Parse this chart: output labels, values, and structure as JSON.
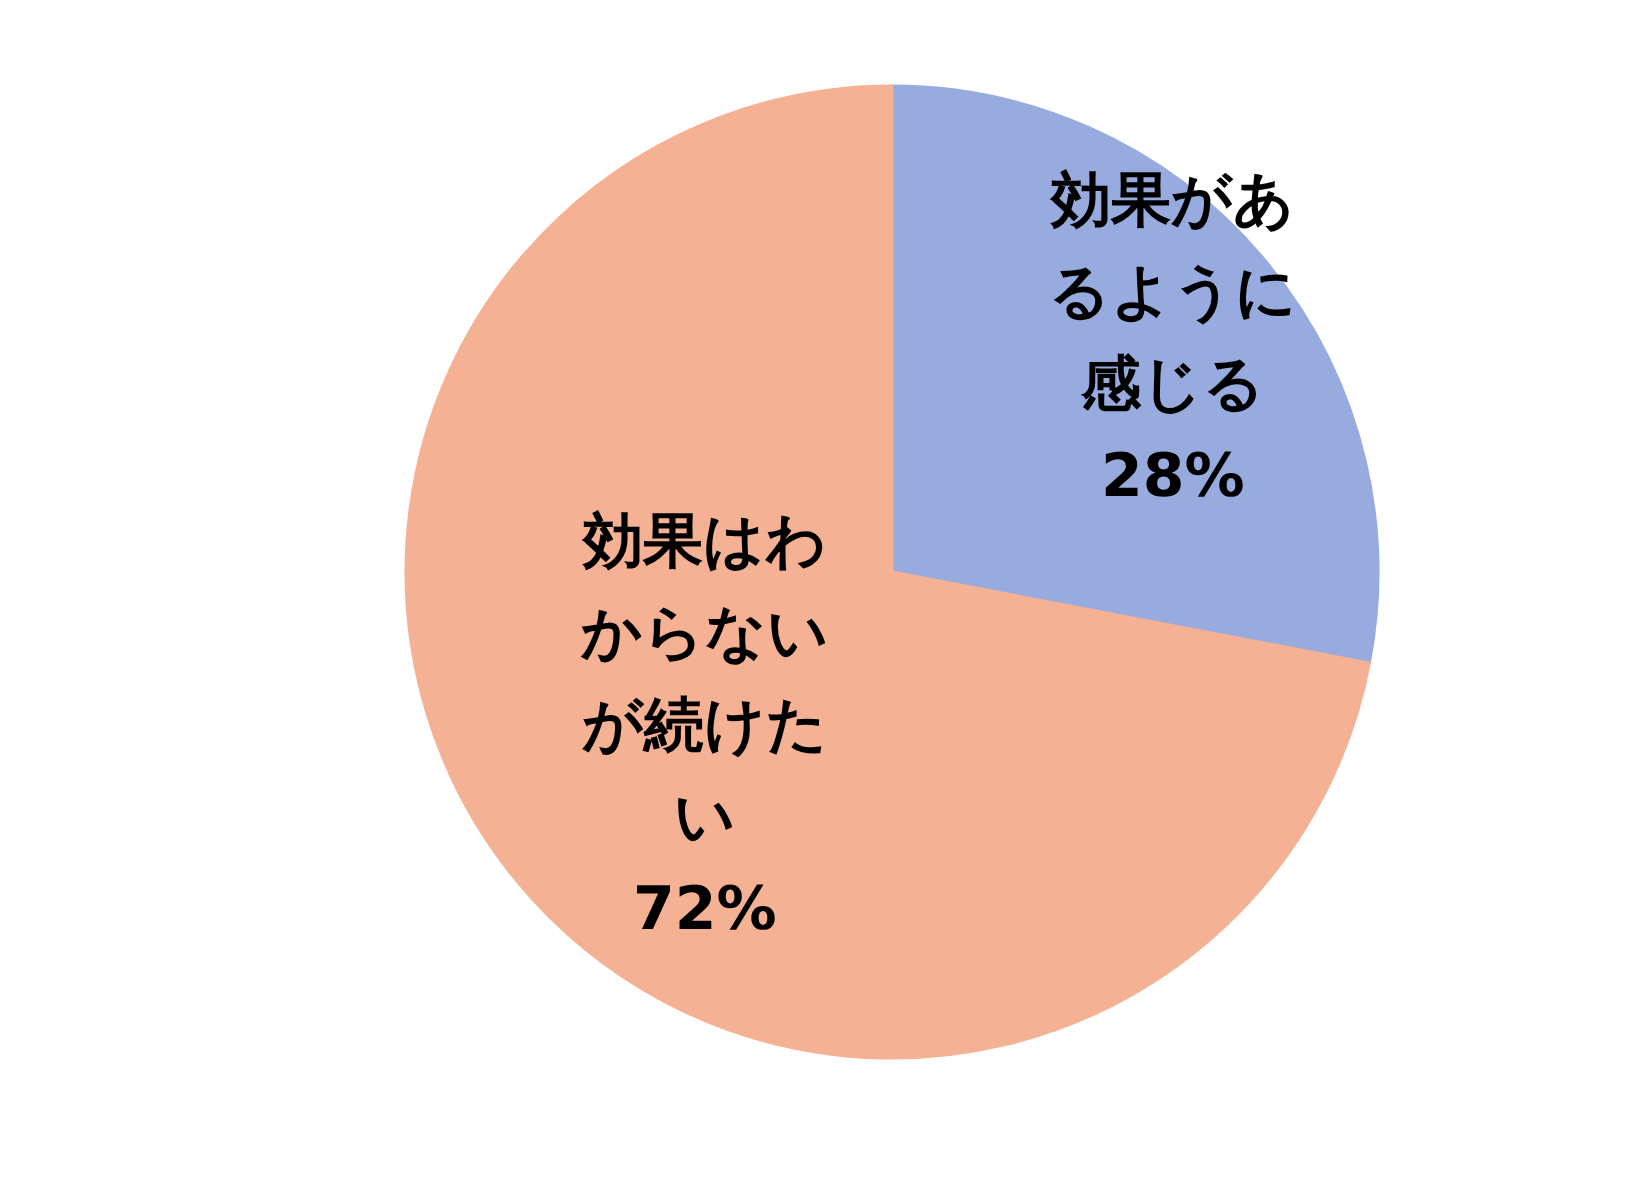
{
  "chart_data": {
    "type": "pie",
    "categories": [
      "効果があるように感じる",
      "効果はわからないが続けたい"
    ],
    "values": [
      28,
      72
    ],
    "colors": [
      "#97abdf",
      "#f5b194"
    ],
    "value_labels": [
      "28%",
      "72%"
    ]
  }
}
